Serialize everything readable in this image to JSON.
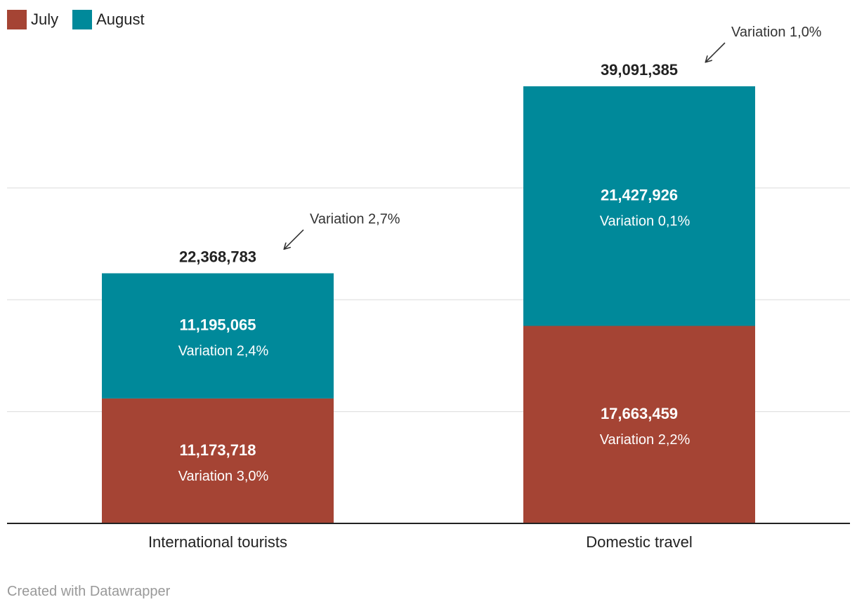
{
  "chart_data": {
    "type": "bar",
    "stacked": true,
    "categories": [
      "International tourists",
      "Domestic travel"
    ],
    "series": [
      {
        "name": "July",
        "color": "#a54434",
        "values": [
          11173718,
          17663459
        ],
        "value_labels": [
          "11,173,718",
          "17,663,459"
        ],
        "notes": [
          "Variation 3,0%",
          "Variation 2,2%"
        ]
      },
      {
        "name": "August",
        "color": "#00899a",
        "values": [
          11195065,
          21427926
        ],
        "value_labels": [
          "11,195,065",
          "21,427,926"
        ],
        "notes": [
          "Variation 2,4%",
          "Variation 0,1%"
        ]
      }
    ],
    "totals": [
      22368783,
      39091385
    ],
    "total_labels": [
      "22,368,783",
      "39,091,385"
    ],
    "total_notes": [
      "Variation 2,7%",
      "Variation 1,0%"
    ],
    "ylim": [
      0,
      40000000
    ],
    "grid": true,
    "legend": "top-left",
    "title": "",
    "xlabel": "",
    "ylabel": ""
  },
  "footer": {
    "credit": "Created with Datawrapper"
  }
}
